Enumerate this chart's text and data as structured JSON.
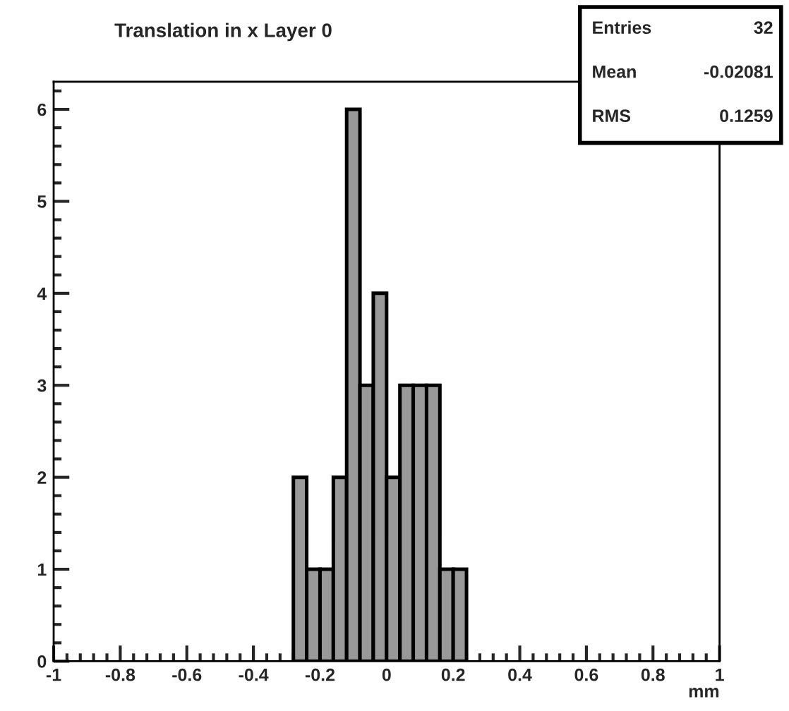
{
  "chart_data": {
    "type": "histogram",
    "title": "Translation in x Layer 0",
    "xlabel": "mm",
    "bins": [
      -0.28,
      -0.24,
      -0.2,
      -0.16,
      -0.12,
      -0.08,
      -0.04,
      0,
      0.04,
      0.08,
      0.12,
      0.16,
      0.2,
      0.24
    ],
    "values": [
      2,
      1,
      1,
      2,
      6,
      3,
      4,
      2,
      3,
      3,
      3,
      1,
      1
    ],
    "color": "#999999",
    "xlim": [
      -1,
      1
    ],
    "xticks": [
      -1,
      -0.8,
      -0.6,
      -0.4,
      -0.2,
      0,
      0.2,
      0.4,
      0.6,
      0.8,
      1
    ],
    "ylim": [
      0,
      6.3
    ],
    "yticks": [
      0,
      1,
      2,
      3,
      4,
      5,
      6
    ],
    "annotations": [
      "Entries",
      "32",
      "Mean",
      "-0.02081",
      "RMS",
      "0.1259"
    ],
    "grid": false,
    "legend": false
  }
}
